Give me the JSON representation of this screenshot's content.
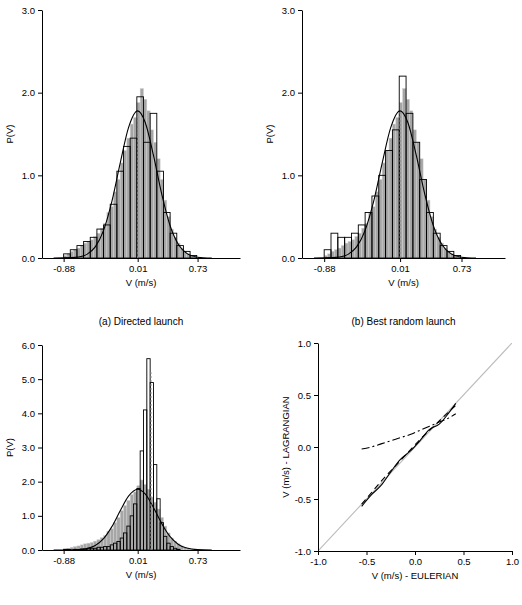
{
  "chart_data": [
    {
      "type": "histogram",
      "title": "(a) Directed launch",
      "x_label": "V (m/s)",
      "y_label": "P(V)",
      "xlim": [
        -1.14,
        1.24
      ],
      "xticks": [
        -0.88,
        0.01,
        0.73
      ],
      "ylim": [
        0,
        3
      ],
      "yticks": [
        {
          "value": 0,
          "label": "0.0"
        },
        {
          "value": 1,
          "label": "1.0"
        },
        {
          "value": 2,
          "label": "2.0"
        },
        {
          "value": 3,
          "label": "3.0"
        }
      ],
      "series": [
        {
          "type": "bar",
          "color": "#a6a6a6",
          "bins": [
            -0.88,
            -0.84,
            -0.8,
            -0.76,
            -0.72,
            -0.68,
            -0.64,
            -0.6,
            -0.56,
            -0.52,
            -0.48,
            -0.44,
            -0.4,
            -0.36,
            -0.32,
            -0.28,
            -0.24,
            -0.2,
            -0.16,
            -0.12,
            -0.08,
            -0.04,
            0,
            0.04,
            0.08,
            0.12,
            0.16,
            0.2,
            0.24,
            0.28,
            0.32,
            0.36,
            0.4,
            0.44,
            0.48,
            0.52,
            0.56,
            0.6,
            0.64,
            0.68,
            0.72
          ],
          "values": [
            0.03,
            0.05,
            0.08,
            0.1,
            0.12,
            0.15,
            0.18,
            0.2,
            0.22,
            0.26,
            0.3,
            0.36,
            0.42,
            0.55,
            0.62,
            0.8,
            0.95,
            1.15,
            1.3,
            1.45,
            1.62,
            1.7,
            1.88,
            2.05,
            1.92,
            1.78,
            1.55,
            1.4,
            1.2,
            0.95,
            0.7,
            0.5,
            0.35,
            0.25,
            0.18,
            0.12,
            0.08,
            0.05,
            0.03,
            0.02
          ]
        },
        {
          "type": "step",
          "color": "#000000",
          "bins": [
            -0.88,
            -0.8,
            -0.72,
            -0.64,
            -0.56,
            -0.48,
            -0.4,
            -0.32,
            -0.24,
            -0.16,
            -0.08,
            0,
            0.08,
            0.16,
            0.24,
            0.32,
            0.4,
            0.48,
            0.56,
            0.64,
            0.72
          ],
          "values": [
            0.05,
            0.1,
            0.15,
            0.2,
            0.25,
            0.35,
            0.4,
            0.65,
            1.05,
            1.35,
            1.45,
            1.95,
            1.4,
            1.75,
            1.05,
            0.55,
            0.3,
            0.15,
            0.08,
            0.03
          ]
        },
        {
          "type": "line",
          "color": "#000000",
          "line_style": "solid",
          "x": [
            -1.0,
            -0.88,
            -0.7,
            -0.6,
            -0.5,
            -0.4,
            -0.3,
            -0.2,
            -0.1,
            0.01,
            0.1,
            0.2,
            0.3,
            0.4,
            0.5,
            0.6,
            0.73,
            0.9
          ],
          "values": [
            0,
            0.001,
            0.012,
            0.044,
            0.134,
            0.334,
            0.684,
            1.148,
            1.577,
            1.78,
            1.642,
            1.242,
            0.77,
            0.39,
            0.163,
            0.056,
            0.01,
            0
          ]
        },
        {
          "type": "vline",
          "color": "#888888",
          "line_style": "dotted",
          "x": [
            0.01
          ],
          "values": [
            1.78
          ]
        }
      ]
    },
    {
      "type": "histogram",
      "title": "(b) Best random launch",
      "x_label": "V (m/s)",
      "y_label": "P(V)",
      "xlim": [
        -1.14,
        1.24
      ],
      "xticks": [
        -0.88,
        0.01,
        0.73
      ],
      "ylim": [
        0,
        3
      ],
      "yticks": [
        {
          "value": 0,
          "label": "0.0"
        },
        {
          "value": 1,
          "label": "1.0"
        },
        {
          "value": 2,
          "label": "2.0"
        },
        {
          "value": 3,
          "label": "3.0"
        }
      ],
      "series": [
        {
          "type": "bar",
          "color": "#a6a6a6",
          "bins": [
            -0.88,
            -0.84,
            -0.8,
            -0.76,
            -0.72,
            -0.68,
            -0.64,
            -0.6,
            -0.56,
            -0.52,
            -0.48,
            -0.44,
            -0.4,
            -0.36,
            -0.32,
            -0.28,
            -0.24,
            -0.2,
            -0.16,
            -0.12,
            -0.08,
            -0.04,
            0,
            0.04,
            0.08,
            0.12,
            0.16,
            0.2,
            0.24,
            0.28,
            0.32,
            0.36,
            0.4,
            0.44,
            0.48,
            0.52,
            0.56,
            0.6,
            0.64,
            0.68,
            0.72
          ],
          "values": [
            0.03,
            0.05,
            0.08,
            0.1,
            0.12,
            0.15,
            0.18,
            0.2,
            0.22,
            0.26,
            0.3,
            0.36,
            0.42,
            0.55,
            0.62,
            0.8,
            0.95,
            1.15,
            1.3,
            1.45,
            1.62,
            1.7,
            1.88,
            2.05,
            1.92,
            1.78,
            1.55,
            1.4,
            1.2,
            0.95,
            0.7,
            0.5,
            0.35,
            0.25,
            0.18,
            0.12,
            0.08,
            0.05,
            0.03,
            0.02
          ]
        },
        {
          "type": "step",
          "color": "#000000",
          "bins": [
            -0.88,
            -0.8,
            -0.72,
            -0.64,
            -0.56,
            -0.48,
            -0.4,
            -0.32,
            -0.24,
            -0.16,
            -0.08,
            0,
            0.08,
            0.16,
            0.24,
            0.32,
            0.4,
            0.48,
            0.56,
            0.64,
            0.72
          ],
          "values": [
            0.1,
            0.3,
            0.25,
            0.25,
            0.3,
            0.4,
            0.55,
            0.75,
            1.0,
            1.3,
            1.55,
            2.2,
            1.75,
            1.4,
            0.95,
            0.55,
            0.3,
            0.15,
            0.08,
            0.03
          ]
        },
        {
          "type": "line",
          "color": "#000000",
          "line_style": "solid",
          "x": [
            -1.0,
            -0.88,
            -0.7,
            -0.6,
            -0.5,
            -0.4,
            -0.3,
            -0.2,
            -0.1,
            0.01,
            0.1,
            0.2,
            0.3,
            0.4,
            0.5,
            0.6,
            0.73,
            0.9
          ],
          "values": [
            0,
            0.001,
            0.012,
            0.044,
            0.134,
            0.334,
            0.684,
            1.148,
            1.577,
            1.78,
            1.642,
            1.242,
            0.77,
            0.39,
            0.163,
            0.056,
            0.01,
            0
          ]
        },
        {
          "type": "vline",
          "color": "#888888",
          "line_style": "dotted",
          "x": [
            0.01
          ],
          "values": [
            1.78
          ]
        }
      ]
    },
    {
      "type": "histogram",
      "x_label": "V (m/s)",
      "y_label": "P(V)",
      "xlim": [
        -1.14,
        1.24
      ],
      "xticks": [
        -0.88,
        0.01,
        0.73
      ],
      "ylim": [
        0,
        6
      ],
      "yticks": [
        {
          "value": 0,
          "label": "0.0"
        },
        {
          "value": 1,
          "label": "1.0"
        },
        {
          "value": 2,
          "label": "2.0"
        },
        {
          "value": 3,
          "label": "3.0"
        },
        {
          "value": 4,
          "label": "4.0"
        },
        {
          "value": 5,
          "label": "5.0"
        },
        {
          "value": 6,
          "label": "6.0"
        }
      ],
      "series": [
        {
          "type": "bar",
          "color": "#a6a6a6",
          "bins": [
            -0.88,
            -0.84,
            -0.8,
            -0.76,
            -0.72,
            -0.68,
            -0.64,
            -0.6,
            -0.56,
            -0.52,
            -0.48,
            -0.44,
            -0.4,
            -0.36,
            -0.32,
            -0.28,
            -0.24,
            -0.2,
            -0.16,
            -0.12,
            -0.08,
            -0.04,
            0,
            0.04,
            0.08,
            0.12,
            0.16,
            0.2,
            0.24,
            0.28,
            0.32,
            0.36,
            0.4,
            0.44,
            0.48,
            0.52,
            0.56,
            0.6,
            0.64,
            0.68,
            0.72
          ],
          "values": [
            0.03,
            0.05,
            0.08,
            0.1,
            0.12,
            0.15,
            0.18,
            0.2,
            0.22,
            0.26,
            0.3,
            0.36,
            0.42,
            0.55,
            0.62,
            0.8,
            0.95,
            1.15,
            1.3,
            1.45,
            1.62,
            1.7,
            1.88,
            2.05,
            1.92,
            1.78,
            1.55,
            1.4,
            1.2,
            0.95,
            0.7,
            0.5,
            0.35,
            0.25,
            0.18,
            0.12,
            0.08,
            0.05,
            0.03,
            0.02
          ]
        },
        {
          "type": "step",
          "color": "#000000",
          "bins": [
            -0.88,
            -0.84,
            -0.8,
            -0.76,
            -0.72,
            -0.68,
            -0.64,
            -0.6,
            -0.56,
            -0.52,
            -0.48,
            -0.44,
            -0.4,
            -0.36,
            -0.32,
            -0.28,
            -0.24,
            -0.2,
            -0.16,
            -0.12,
            -0.08,
            -0.04,
            0,
            0.04,
            0.08,
            0.12,
            0.16,
            0.2,
            0.24,
            0.28,
            0.32,
            0.36,
            0.4,
            0.44,
            0.48,
            0.52,
            0.56,
            0.6,
            0.64,
            0.68,
            0.72
          ],
          "values": [
            0.02,
            0.02,
            0,
            0.02,
            0,
            0.03,
            0.03,
            0.05,
            0.05,
            0.05,
            0.08,
            0.08,
            0.1,
            0.1,
            0.15,
            0.2,
            0.25,
            0.35,
            0.5,
            0.7,
            1.0,
            1.35,
            1.8,
            2.9,
            4.1,
            5.6,
            4.9,
            2.5,
            1.5,
            0.8,
            0.4,
            0.2,
            0.1,
            0.05,
            0.02,
            0,
            0,
            0,
            0,
            0
          ]
        },
        {
          "type": "line",
          "color": "#000000",
          "line_style": "solid",
          "x": [
            -1.0,
            -0.88,
            -0.7,
            -0.6,
            -0.5,
            -0.4,
            -0.3,
            -0.2,
            -0.1,
            0.01,
            0.1,
            0.2,
            0.3,
            0.4,
            0.5,
            0.6,
            0.73,
            0.9
          ],
          "values": [
            0,
            0.001,
            0.012,
            0.044,
            0.134,
            0.334,
            0.684,
            1.148,
            1.577,
            1.78,
            1.642,
            1.242,
            0.77,
            0.39,
            0.163,
            0.056,
            0.01,
            0
          ]
        },
        {
          "type": "vline",
          "color": "#888888",
          "line_style": "dotted",
          "x": [
            0.17
          ],
          "values": [
            5.2
          ]
        }
      ]
    },
    {
      "type": "line",
      "x_label": "V (m/s) - EULERIAN",
      "y_label": "V (m/s) - LAGRANGIAN",
      "xlim": [
        -1,
        1
      ],
      "xticks": [
        {
          "value": -1,
          "label": "-1.0"
        },
        {
          "value": -0.5,
          "label": "-0.5"
        },
        {
          "value": 0,
          "label": "0.0"
        },
        {
          "value": 0.5,
          "label": "0.5"
        },
        {
          "value": 1,
          "label": "1.0"
        }
      ],
      "ylim": [
        -1,
        1
      ],
      "yticks": [
        {
          "value": -1,
          "label": "-1.0"
        },
        {
          "value": -0.5,
          "label": "-0.5"
        },
        {
          "value": 0,
          "label": "0.0"
        },
        {
          "value": 0.5,
          "label": "0.5"
        },
        {
          "value": 1,
          "label": "1.0"
        }
      ],
      "series": [
        {
          "type": "line",
          "color": "#bbbbbb",
          "line_style": "solid",
          "x": [
            -1,
            1
          ],
          "values": [
            -1,
            1
          ]
        },
        {
          "type": "line",
          "color": "#000000",
          "line_style": "solid",
          "x": [
            -0.55,
            -0.45,
            -0.35,
            -0.25,
            -0.15,
            -0.05,
            0.05,
            0.15,
            0.25,
            0.35,
            0.42
          ],
          "values": [
            -0.57,
            -0.46,
            -0.37,
            -0.24,
            -0.12,
            -0.04,
            0.06,
            0.17,
            0.22,
            0.33,
            0.42
          ]
        },
        {
          "type": "line",
          "color": "#000000",
          "line_style": "dashed",
          "x": [
            -0.55,
            -0.45,
            -0.35,
            -0.25,
            -0.15,
            -0.05,
            0.05,
            0.15,
            0.25,
            0.35,
            0.42
          ],
          "values": [
            -0.55,
            -0.44,
            -0.33,
            -0.23,
            -0.13,
            -0.03,
            0.07,
            0.16,
            0.25,
            0.34,
            0.4
          ]
        },
        {
          "type": "line",
          "color": "#000000",
          "line_style": "dashdot",
          "x": [
            -0.55,
            -0.45,
            -0.35,
            -0.25,
            -0.15,
            -0.05,
            0.05,
            0.15,
            0.25,
            0.35,
            0.42
          ],
          "values": [
            -0.02,
            0.0,
            0.03,
            0.06,
            0.09,
            0.12,
            0.16,
            0.2,
            0.24,
            0.28,
            0.32
          ]
        }
      ]
    }
  ]
}
